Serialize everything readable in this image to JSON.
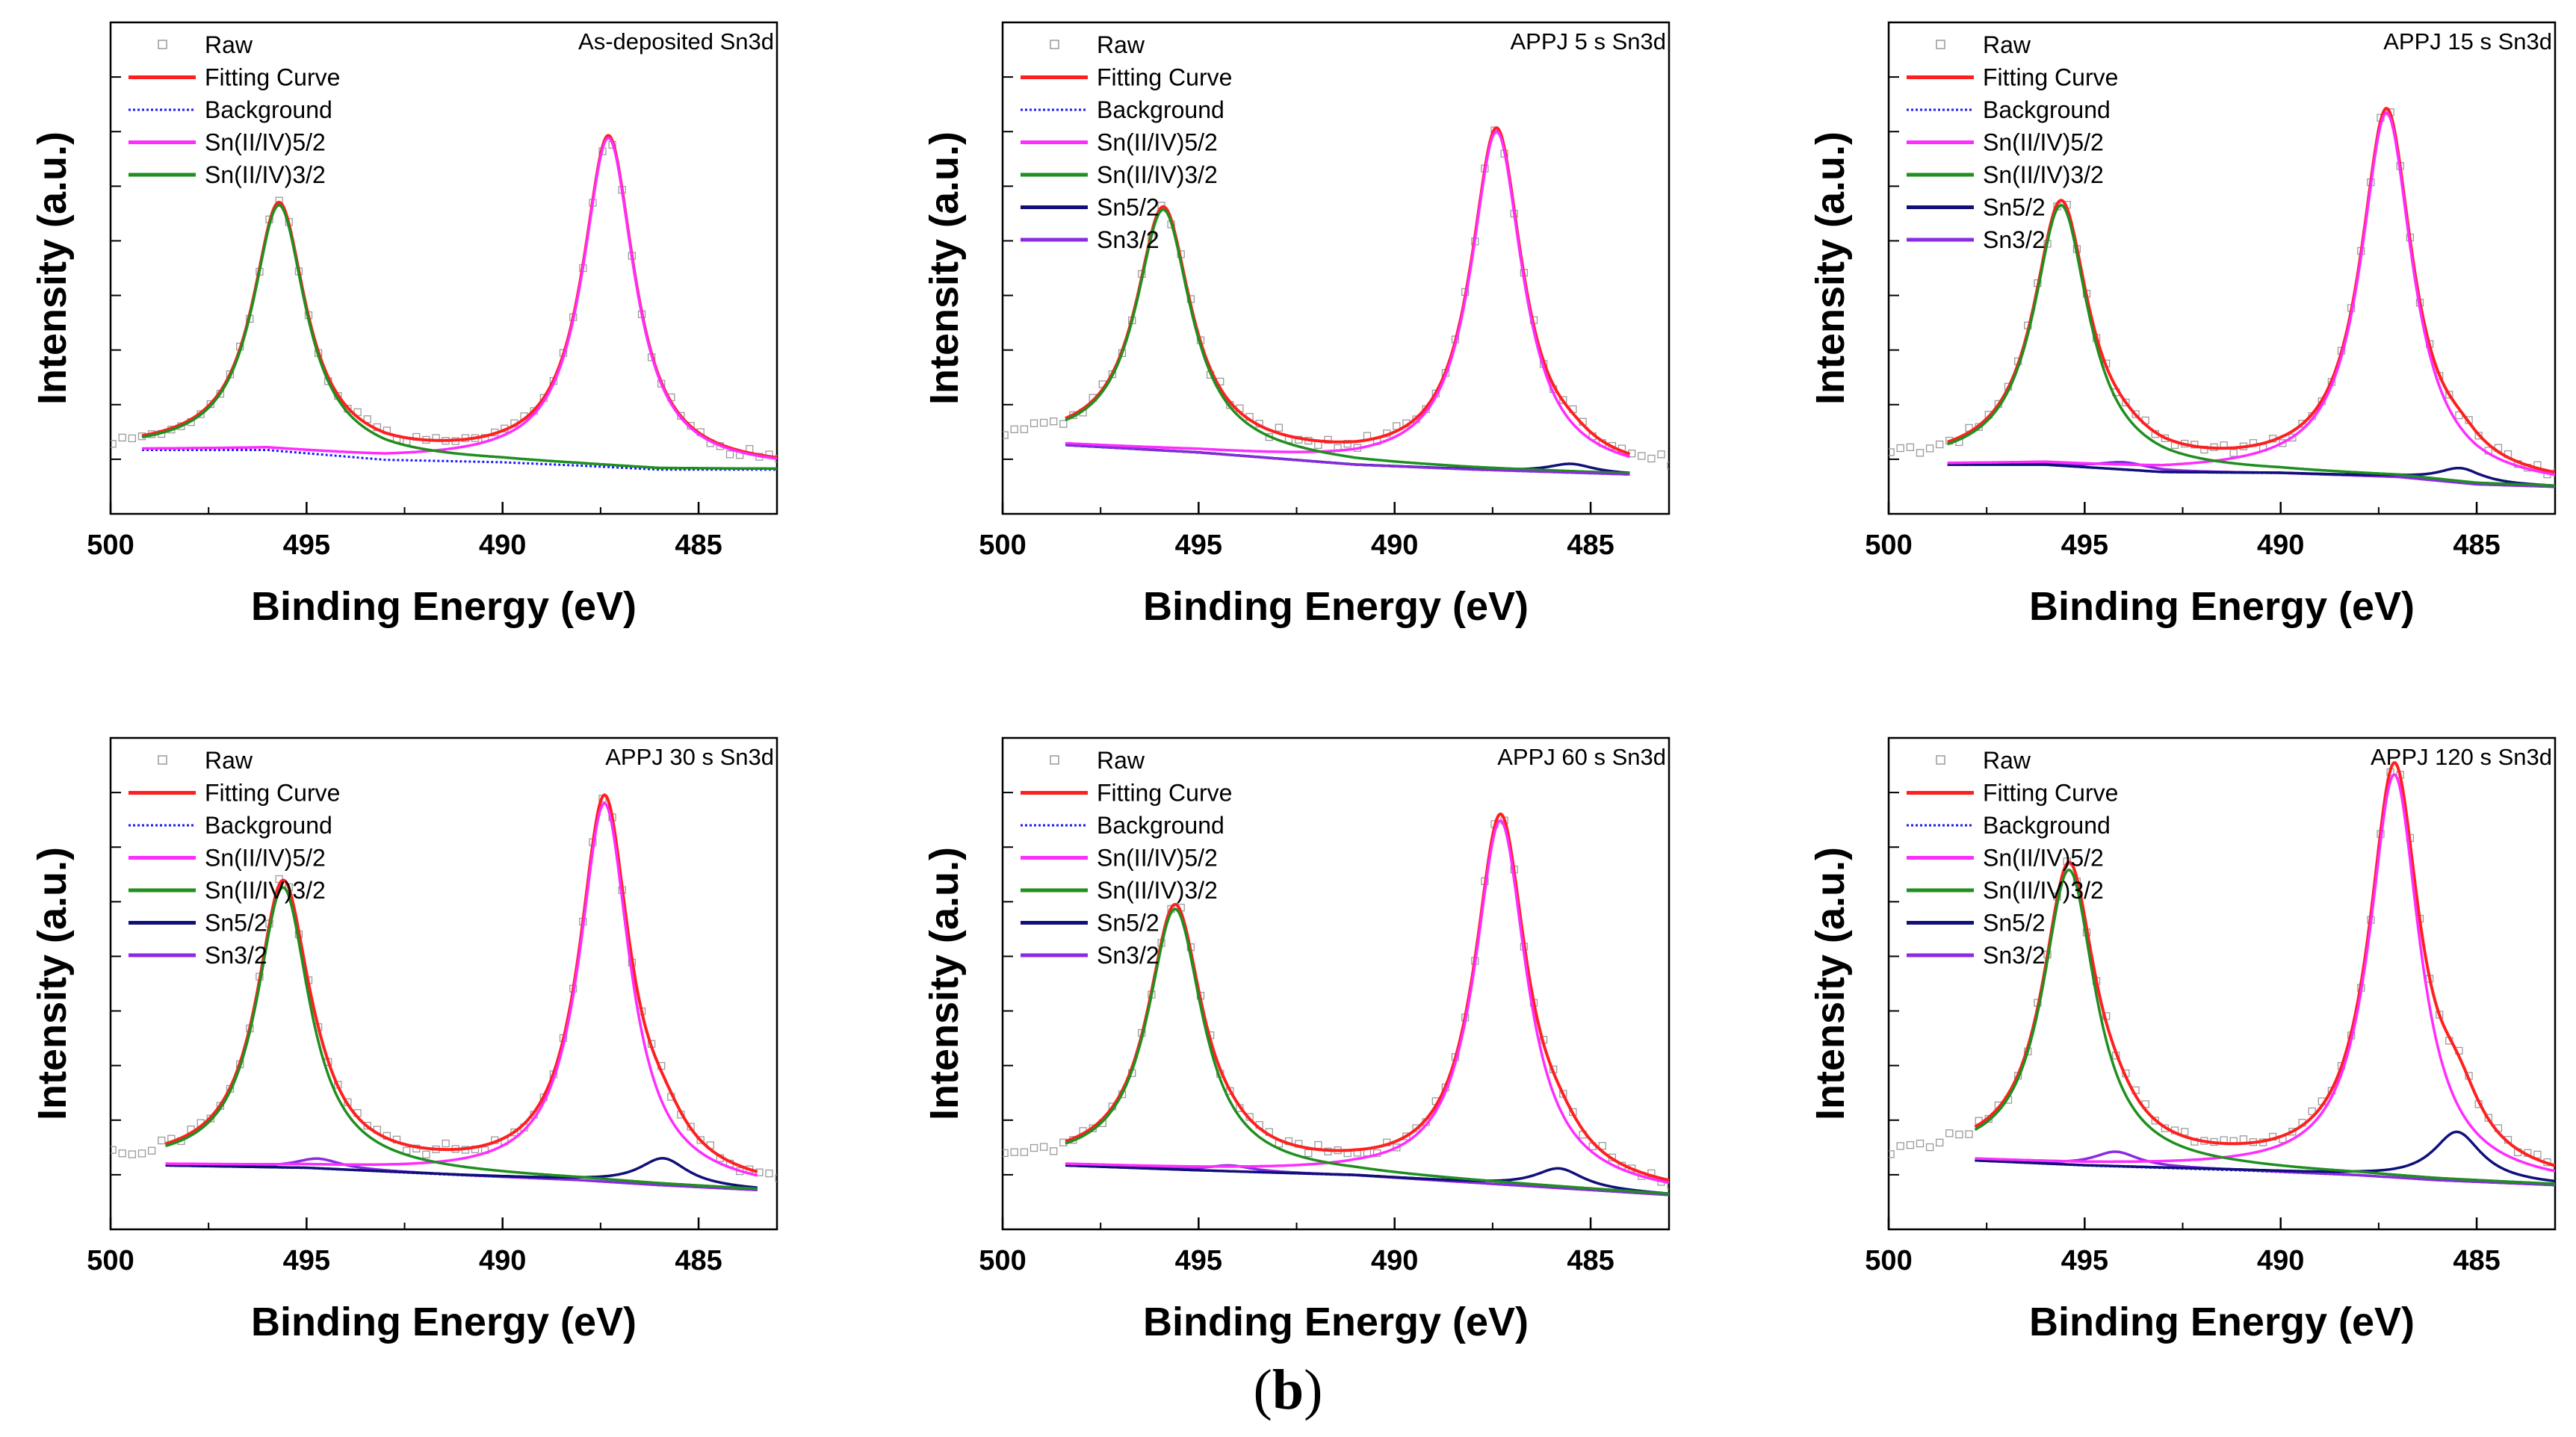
{
  "figure": {
    "caption_open": "(",
    "caption_letter": "b",
    "caption_close": ")"
  },
  "legend_labels": {
    "raw": "Raw",
    "fit": "Fitting Curve",
    "bg": "Background",
    "p52": "Sn(II/IV)5/2",
    "p32": "Sn(II/IV)3/2",
    "m52": "Sn5/2",
    "m32": "Sn3/2"
  },
  "colors": {
    "raw": "#9a9a9a",
    "fit": "#ff1f1f",
    "bg": "#1a1aff",
    "p52": "#ff2cff",
    "p32": "#1f8f1f",
    "m52": "#10107a",
    "m32": "#8a2be2",
    "axis": "#000000"
  },
  "chart_data": [
    {
      "type": "line",
      "title": "As-deposited Sn3d",
      "xlabel": "Binding Energy (eV)",
      "ylabel": "Intensity (a.u.)",
      "xlim": [
        500,
        483
      ],
      "x_ticks": [
        500,
        495,
        490,
        485
      ],
      "ylim": [
        0,
        1
      ],
      "legend": [
        "raw",
        "fit",
        "bg",
        "p52",
        "p32"
      ],
      "fit_range": [
        499.2,
        483
      ],
      "background_points": [
        [
          499.2,
          0.13
        ],
        [
          496,
          0.13
        ],
        [
          493,
          0.11
        ],
        [
          490,
          0.105
        ],
        [
          488,
          0.098
        ],
        [
          486,
          0.09
        ],
        [
          483,
          0.09
        ]
      ],
      "peaks": [
        {
          "series": "p32",
          "center": 495.7,
          "height": 0.5,
          "width": 0.82
        },
        {
          "series": "p52",
          "center": 487.3,
          "height": 0.67,
          "width": 0.8
        }
      ],
      "raw_noise": 0.008
    },
    {
      "type": "line",
      "title": "APPJ 5 s Sn3d",
      "xlabel": "Binding Energy (eV)",
      "ylabel": "Intensity (a.u.)",
      "xlim": [
        500,
        483
      ],
      "x_ticks": [
        500,
        495,
        490,
        485
      ],
      "ylim": [
        0,
        1
      ],
      "legend": [
        "raw",
        "fit",
        "bg",
        "p52",
        "p32",
        "m52",
        "m32"
      ],
      "fit_range": [
        498.4,
        484
      ],
      "background_points": [
        [
          498.4,
          0.14
        ],
        [
          495,
          0.125
        ],
        [
          491,
          0.1
        ],
        [
          488,
          0.09
        ],
        [
          486,
          0.085
        ],
        [
          484,
          0.08
        ]
      ],
      "peaks": [
        {
          "series": "p32",
          "center": 495.9,
          "height": 0.49,
          "width": 0.85
        },
        {
          "series": "p52",
          "center": 487.4,
          "height": 0.69,
          "width": 0.8
        },
        {
          "series": "m52",
          "center": 485.5,
          "height": 0.018,
          "width": 0.7
        }
      ],
      "raw_noise": 0.009
    },
    {
      "type": "line",
      "title": "APPJ 15 s Sn3d",
      "xlabel": "Binding Energy (eV)",
      "ylabel": "Intensity (a.u.)",
      "xlim": [
        500,
        483
      ],
      "x_ticks": [
        500,
        495,
        490,
        485
      ],
      "ylim": [
        0,
        1
      ],
      "legend": [
        "raw",
        "fit",
        "bg",
        "p52",
        "p32",
        "m52",
        "m32"
      ],
      "fit_range": [
        498.5,
        483
      ],
      "background_points": [
        [
          498.5,
          0.1
        ],
        [
          496,
          0.1
        ],
        [
          493,
          0.085
        ],
        [
          490,
          0.083
        ],
        [
          487,
          0.075
        ],
        [
          485,
          0.06
        ],
        [
          483,
          0.055
        ]
      ],
      "peaks": [
        {
          "series": "p32",
          "center": 495.6,
          "height": 0.53,
          "width": 0.85
        },
        {
          "series": "p52",
          "center": 487.3,
          "height": 0.74,
          "width": 0.8
        },
        {
          "series": "m52",
          "center": 485.4,
          "height": 0.03,
          "width": 0.7
        },
        {
          "series": "m32",
          "center": 494.0,
          "height": 0.015,
          "width": 0.8
        }
      ],
      "raw_noise": 0.009
    },
    {
      "type": "line",
      "title": "APPJ 30 s Sn3d",
      "xlabel": "Binding Energy (eV)",
      "ylabel": "Intensity (a.u.)",
      "xlim": [
        500,
        483
      ],
      "x_ticks": [
        500,
        495,
        490,
        485
      ],
      "ylim": [
        0,
        1
      ],
      "legend": [
        "raw",
        "fit",
        "bg",
        "p52",
        "p32",
        "m52",
        "m32"
      ],
      "fit_range": [
        498.6,
        483.5
      ],
      "background_points": [
        [
          498.6,
          0.13
        ],
        [
          495,
          0.125
        ],
        [
          491,
          0.11
        ],
        [
          488,
          0.1
        ],
        [
          486,
          0.09
        ],
        [
          483.5,
          0.08
        ]
      ],
      "peaks": [
        {
          "series": "p32",
          "center": 495.6,
          "height": 0.57,
          "width": 0.82
        },
        {
          "series": "p52",
          "center": 487.4,
          "height": 0.77,
          "width": 0.78
        },
        {
          "series": "m52",
          "center": 485.9,
          "height": 0.055,
          "width": 0.75
        },
        {
          "series": "m32",
          "center": 494.7,
          "height": 0.02,
          "width": 0.7
        }
      ],
      "raw_noise": 0.009
    },
    {
      "type": "line",
      "title": "APPJ 60 s Sn3d",
      "xlabel": "Binding Energy (eV)",
      "ylabel": "Intensity (a.u.)",
      "xlim": [
        500,
        483
      ],
      "x_ticks": [
        500,
        495,
        490,
        485
      ],
      "ylim": [
        0,
        1
      ],
      "legend": [
        "raw",
        "fit",
        "bg",
        "p52",
        "p32",
        "m52",
        "m32"
      ],
      "fit_range": [
        498.4,
        483
      ],
      "background_points": [
        [
          498.4,
          0.13
        ],
        [
          495,
          0.12
        ],
        [
          491,
          0.11
        ],
        [
          488,
          0.095
        ],
        [
          486,
          0.085
        ],
        [
          483,
          0.07
        ]
      ],
      "peaks": [
        {
          "series": "p32",
          "center": 495.6,
          "height": 0.53,
          "width": 0.85
        },
        {
          "series": "p52",
          "center": 487.3,
          "height": 0.74,
          "width": 0.8
        },
        {
          "series": "m52",
          "center": 485.8,
          "height": 0.04,
          "width": 0.75
        },
        {
          "series": "m32",
          "center": 494.2,
          "height": 0.012,
          "width": 0.7
        }
      ],
      "raw_noise": 0.009
    },
    {
      "type": "line",
      "title": "APPJ 120 s Sn3d",
      "xlabel": "Binding Energy (eV)",
      "ylabel": "Intensity (a.u.)",
      "xlim": [
        500,
        483
      ],
      "x_ticks": [
        500,
        495,
        490,
        485
      ],
      "ylim": [
        0,
        1
      ],
      "legend": [
        "raw",
        "fit",
        "bg",
        "p52",
        "p32",
        "m52",
        "m32"
      ],
      "fit_range": [
        497.8,
        483
      ],
      "background_points": [
        [
          497.8,
          0.14
        ],
        [
          495,
          0.13
        ],
        [
          491,
          0.12
        ],
        [
          488,
          0.11
        ],
        [
          486,
          0.1
        ],
        [
          483,
          0.09
        ]
      ],
      "peaks": [
        {
          "series": "p32",
          "center": 495.4,
          "height": 0.6,
          "width": 0.82
        },
        {
          "series": "p52",
          "center": 487.1,
          "height": 0.82,
          "width": 0.78
        },
        {
          "series": "m52",
          "center": 485.5,
          "height": 0.1,
          "width": 0.75
        },
        {
          "series": "m32",
          "center": 494.2,
          "height": 0.03,
          "width": 0.7
        }
      ],
      "raw_noise": 0.009
    }
  ]
}
